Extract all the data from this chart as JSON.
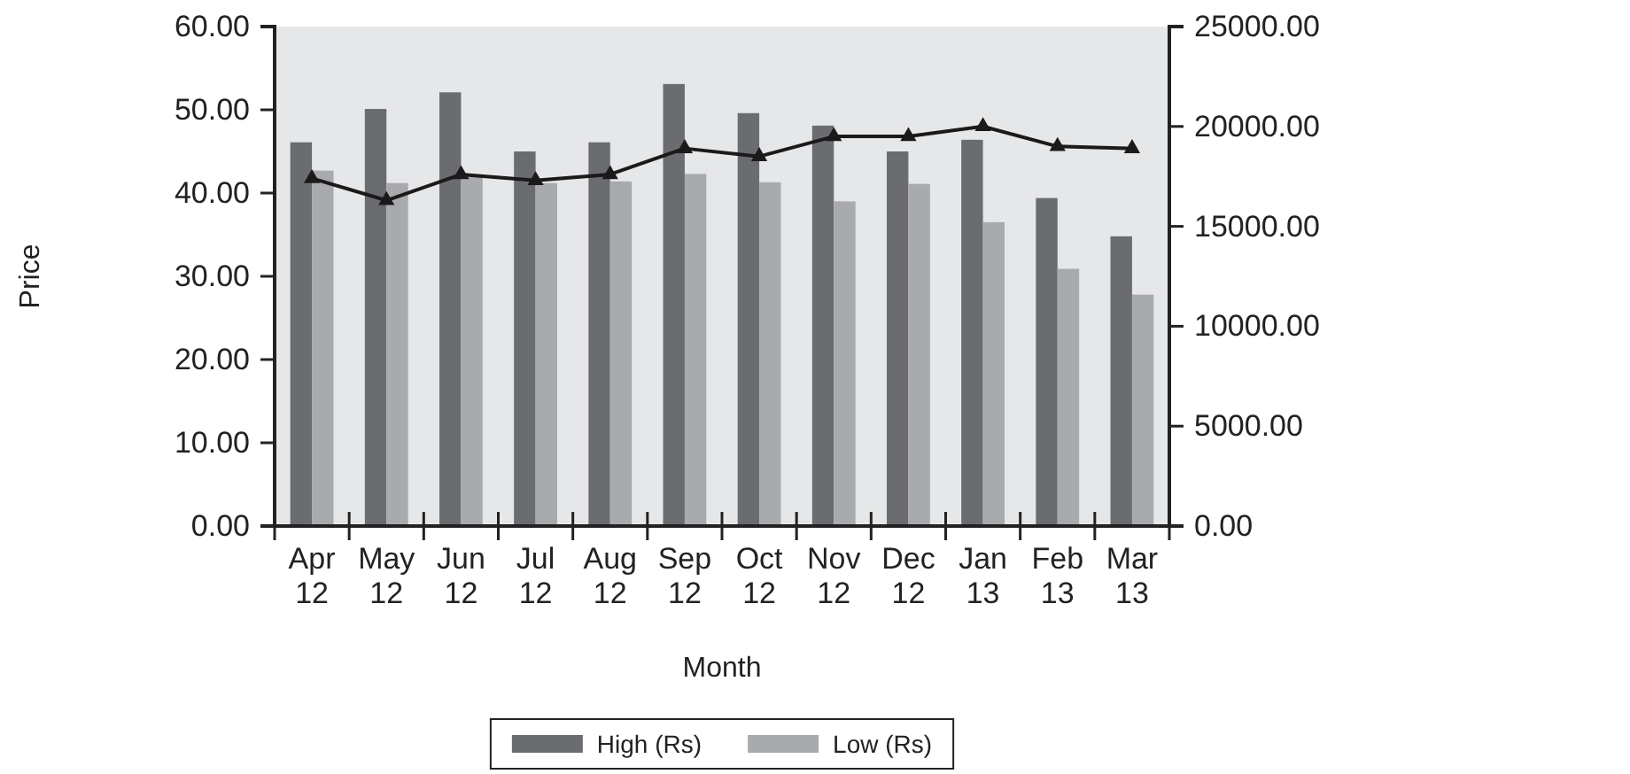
{
  "chart_data": {
    "type": "bar",
    "xlabel": "Month",
    "ylabel": "Price",
    "categories": [
      "Apr 12",
      "May 12",
      "Jun 12",
      "Jul 12",
      "Aug 12",
      "Sep 12",
      "Oct 12",
      "Nov 12",
      "Dec 12",
      "Jan 13",
      "Feb 13",
      "Mar 13"
    ],
    "series": [
      {
        "name": "High (Rs)",
        "color": "#6b6c70",
        "values": [
          46.1,
          50.1,
          52.1,
          45.0,
          46.1,
          53.1,
          49.6,
          48.1,
          45.0,
          46.4,
          39.4,
          34.8
        ]
      },
      {
        "name": "Low (Rs)",
        "color": "#a9aaad",
        "values": [
          42.7,
          41.2,
          42.1,
          41.2,
          41.4,
          42.3,
          41.3,
          39.0,
          41.1,
          36.5,
          30.9,
          27.8
        ]
      },
      {
        "type": "line",
        "axis": "y2",
        "color": "#1a1a1a",
        "marker": "triangle",
        "values": [
          17400,
          16300,
          17600,
          17300,
          17600,
          18900,
          18500,
          19500,
          19500,
          20000,
          19000,
          18900
        ]
      }
    ],
    "ylim": [
      0,
      60
    ],
    "yticks": [
      {
        "value": 0,
        "label": "0.00"
      },
      {
        "value": 10,
        "label": "10.00"
      },
      {
        "value": 20,
        "label": "20.00"
      },
      {
        "value": 30,
        "label": "30.00"
      },
      {
        "value": 40,
        "label": "40.00"
      },
      {
        "value": 50,
        "label": "50.00"
      },
      {
        "value": 60,
        "label": "60.00"
      }
    ],
    "y2lim": [
      0,
      25000
    ],
    "y2ticks": [
      {
        "value": 0,
        "label": "0.00"
      },
      {
        "value": 5000,
        "label": "5000.00"
      },
      {
        "value": 10000,
        "label": "10000.00"
      },
      {
        "value": 15000,
        "label": "15000.00"
      },
      {
        "value": 20000,
        "label": "20000.00"
      },
      {
        "value": 25000,
        "label": "25000.00"
      }
    ],
    "grid": false,
    "legend": "bottom"
  }
}
